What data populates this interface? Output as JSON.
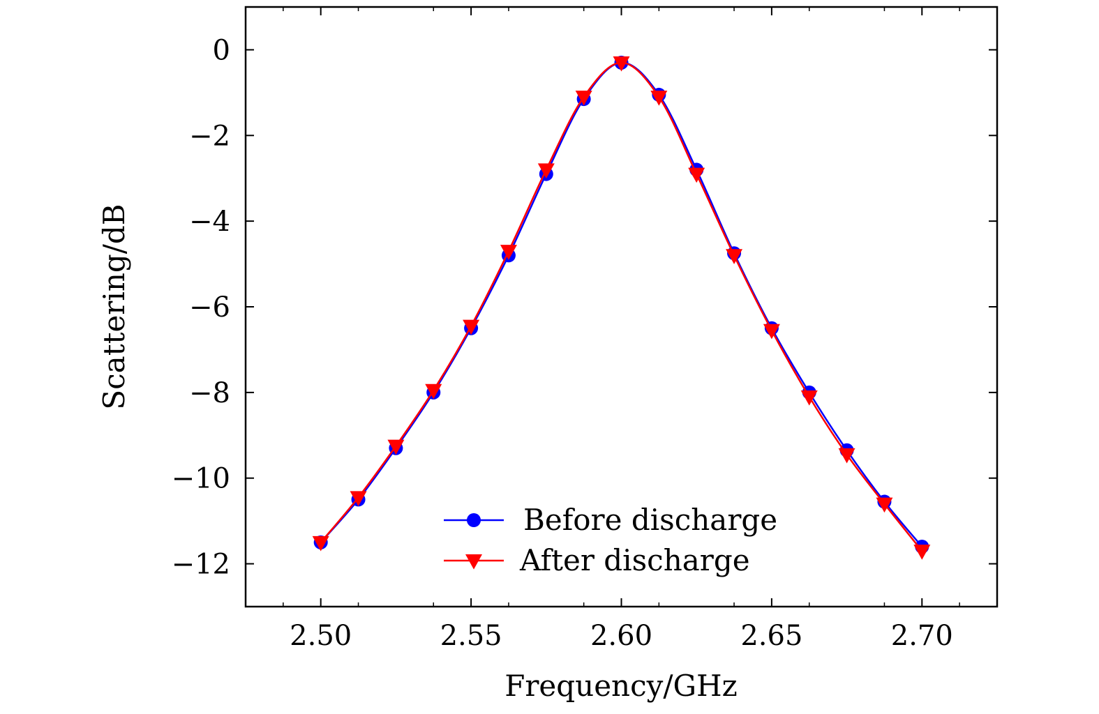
{
  "chart_data": {
    "type": "line",
    "title": "",
    "xlabel": "Frequency/GHz",
    "ylabel": "Scattering/dB",
    "xlim": [
      2.475,
      2.725
    ],
    "ylim": [
      -13,
      1
    ],
    "xticks": [
      2.5,
      2.55,
      2.6,
      2.65,
      2.7
    ],
    "xtick_labels": [
      "2.50",
      "2.55",
      "2.60",
      "2.65",
      "2.70"
    ],
    "yticks": [
      0,
      -2,
      -4,
      -6,
      -8,
      -10,
      -12
    ],
    "ytick_labels": [
      "0",
      "−2",
      "−4",
      "−6",
      "−8",
      "−10",
      "−12"
    ],
    "grid": false,
    "legend_position": "bottom-center",
    "series": [
      {
        "name": "Before discharge",
        "color": "#0000ff",
        "marker": "circle",
        "x": [
          2.5,
          2.5125,
          2.525,
          2.5375,
          2.55,
          2.5625,
          2.575,
          2.5875,
          2.6,
          2.6125,
          2.625,
          2.6375,
          2.65,
          2.6625,
          2.675,
          2.6875,
          2.7
        ],
        "y": [
          -11.5,
          -10.5,
          -9.3,
          -8.0,
          -6.5,
          -4.8,
          -2.9,
          -1.15,
          -0.3,
          -1.05,
          -2.8,
          -4.75,
          -6.5,
          -8.0,
          -9.35,
          -10.55,
          -11.6
        ]
      },
      {
        "name": "After discharge",
        "color": "#ff0000",
        "marker": "triangle-down",
        "x": [
          2.5,
          2.5125,
          2.525,
          2.5375,
          2.55,
          2.5625,
          2.575,
          2.5875,
          2.6,
          2.6125,
          2.625,
          2.6375,
          2.65,
          2.6625,
          2.675,
          2.6875,
          2.7
        ],
        "y": [
          -11.5,
          -10.45,
          -9.25,
          -7.95,
          -6.45,
          -4.7,
          -2.8,
          -1.1,
          -0.3,
          -1.1,
          -2.9,
          -4.8,
          -6.55,
          -8.1,
          -9.45,
          -10.6,
          -11.7
        ]
      }
    ]
  }
}
